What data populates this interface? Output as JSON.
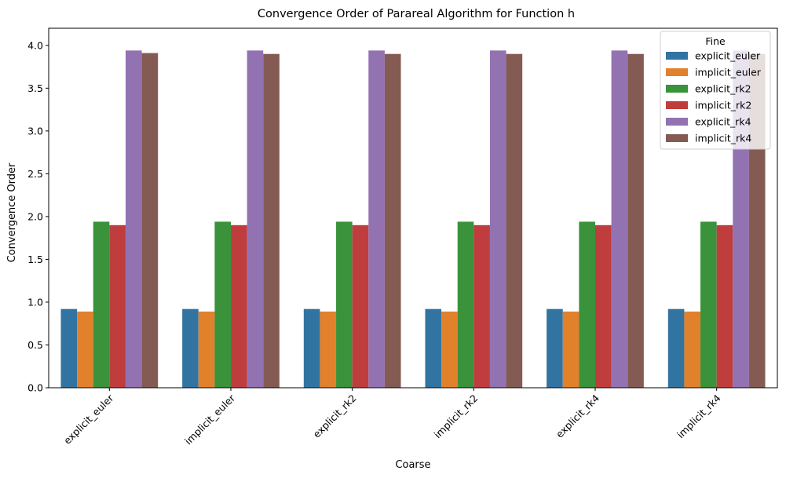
{
  "chart_data": {
    "type": "bar",
    "title": "Convergence Order of Parareal Algorithm for Function h",
    "xlabel": "Coarse",
    "ylabel": "Convergence Order",
    "categories": [
      "explicit_euler",
      "implicit_euler",
      "explicit_rk2",
      "implicit_rk2",
      "explicit_rk4",
      "implicit_rk4"
    ],
    "ylim": [
      0,
      4.2
    ],
    "yticks": [
      0.0,
      0.5,
      1.0,
      1.5,
      2.0,
      2.5,
      3.0,
      3.5,
      4.0
    ],
    "ytick_labels": [
      "0.0",
      "0.5",
      "1.0",
      "1.5",
      "2.0",
      "2.5",
      "3.0",
      "3.5",
      "4.0"
    ],
    "grid": false,
    "legend": {
      "title": "Fine",
      "placement": "top-right"
    },
    "series": [
      {
        "name": "explicit_euler",
        "color": "#3274a1",
        "values": [
          0.92,
          0.92,
          0.92,
          0.92,
          0.92,
          0.92
        ]
      },
      {
        "name": "implicit_euler",
        "color": "#e1812c",
        "values": [
          0.89,
          0.89,
          0.89,
          0.89,
          0.89,
          0.89
        ]
      },
      {
        "name": "explicit_rk2",
        "color": "#3a923a",
        "values": [
          1.94,
          1.94,
          1.94,
          1.94,
          1.94,
          1.94
        ]
      },
      {
        "name": "implicit_rk2",
        "color": "#c03d3e",
        "values": [
          1.9,
          1.9,
          1.9,
          1.9,
          1.9,
          1.9
        ]
      },
      {
        "name": "explicit_rk4",
        "color": "#9372b2",
        "values": [
          3.94,
          3.94,
          3.94,
          3.94,
          3.94,
          3.94
        ]
      },
      {
        "name": "implicit_rk4",
        "color": "#845b53",
        "values": [
          3.91,
          3.9,
          3.9,
          3.9,
          3.9,
          3.9
        ]
      }
    ]
  }
}
